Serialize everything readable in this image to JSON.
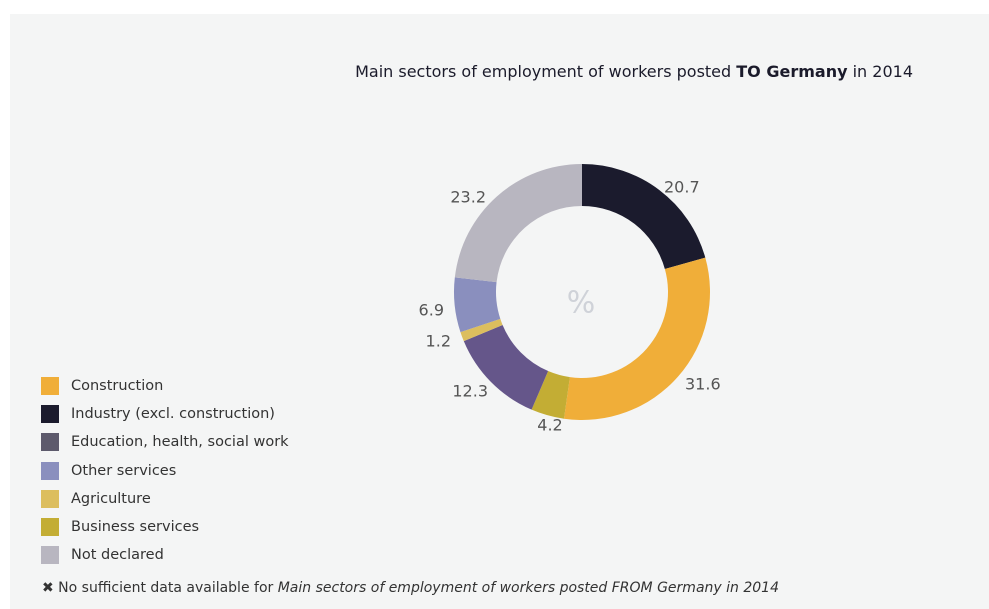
{
  "chart_data": {
    "type": "pie",
    "variant": "donut",
    "title_parts": [
      "Main sectors of employment of workers posted ",
      "TO Germany",
      " in 2014"
    ],
    "center_label": "%",
    "slices": [
      {
        "label": "Industry (excl. construction)",
        "value": 20.7,
        "value_label": "20.7",
        "color": "#1b1b2d"
      },
      {
        "label": "Construction",
        "value": 31.6,
        "value_label": "31.6",
        "color": "#f0ae39"
      },
      {
        "label": "Business services",
        "value": 4.2,
        "value_label": "4.2",
        "color": "#c3ad34"
      },
      {
        "label": "Education, health, social work",
        "value": 12.3,
        "value_label": "12.3",
        "color": "#65568a"
      },
      {
        "label": "Agriculture",
        "value": 1.2,
        "value_label": "1.2",
        "color": "#dcbe5e"
      },
      {
        "label": "Other services",
        "value": 6.9,
        "value_label": "6.9",
        "color": "#8a8fbe"
      },
      {
        "label": "Not declared",
        "value": 23.2,
        "value_label": "23.2",
        "color": "#b8b6c0"
      }
    ],
    "legend": [
      {
        "label": "Construction",
        "color": "#f0ae39"
      },
      {
        "label": "Industry (excl. construction)",
        "color": "#1b1b2d"
      },
      {
        "label": "Education, health, social work",
        "color": "#5d5a6c"
      },
      {
        "label": "Other services",
        "color": "#8a8fbe"
      },
      {
        "label": "Agriculture",
        "color": "#dcbe5e"
      },
      {
        "label": "Business services",
        "color": "#c3ad34"
      },
      {
        "label": "Not declared",
        "color": "#b8b6c0"
      }
    ],
    "legend_position": "bottom-left"
  },
  "footnote": {
    "icon": "x-icon",
    "symbol": "✖",
    "text": " No sufficient data available for ",
    "emphasis": "Main sectors of employment of workers posted FROM Germany in 2014"
  }
}
